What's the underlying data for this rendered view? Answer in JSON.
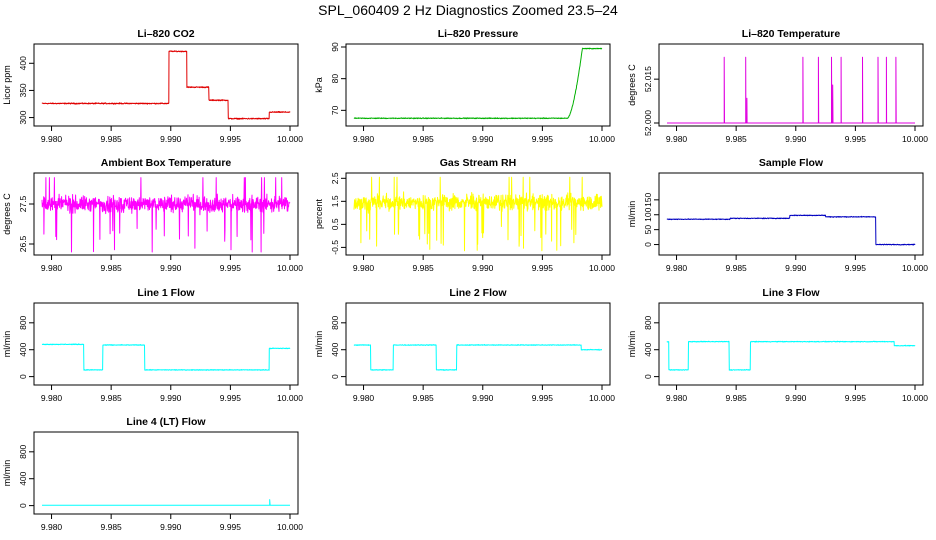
{
  "figure": {
    "title": "SPL_060409  2 Hz Diagnostics Zoomed 23.5–24"
  },
  "chart_data": [
    {
      "id": "co2",
      "type": "line",
      "title": "Li–820 CO2",
      "ylabel": "Licor ppm",
      "xlabel": "",
      "color": "#e00000",
      "xlim": [
        9.9792,
        10.0
      ],
      "ylim": [
        290,
        430
      ],
      "xticks": [
        9.98,
        9.985,
        9.99,
        9.995,
        10.0
      ],
      "xtick_labels": [
        "9.980",
        "9.985",
        "9.990",
        "9.995",
        "10.000"
      ],
      "yticks": [
        300,
        350,
        400
      ],
      "ytick_labels": [
        "300",
        "350",
        "400"
      ],
      "noise": 1.5,
      "segments": [
        [
          9.9792,
          9.98985,
          326
        ],
        [
          9.98985,
          9.99135,
          422
        ],
        [
          9.99135,
          9.9932,
          356
        ],
        [
          9.9932,
          9.9948,
          332
        ],
        [
          9.9948,
          9.99825,
          298
        ],
        [
          9.99825,
          10.0,
          310
        ]
      ]
    },
    {
      "id": "pressure",
      "type": "line",
      "title": "Li–820 Pressure",
      "ylabel": "kPa",
      "xlabel": "",
      "color": "#00b000",
      "xlim": [
        9.9792,
        10.0
      ],
      "ylim": [
        66,
        90
      ],
      "xticks": [
        9.98,
        9.985,
        9.99,
        9.995,
        10.0
      ],
      "xtick_labels": [
        "9.980",
        "9.985",
        "9.990",
        "9.995",
        "10.000"
      ],
      "yticks": [
        70,
        80,
        90
      ],
      "ytick_labels": [
        "70",
        "80",
        "90"
      ],
      "noise": 0.2,
      "segments": [
        [
          9.9792,
          9.9975,
          67.5
        ],
        [
          9.9975,
          9.99835,
          89.5
        ],
        [
          9.99835,
          10.0,
          89.5
        ]
      ],
      "ramp": [
        9.9971,
        9.99835,
        67.5,
        89.5
      ]
    },
    {
      "id": "temperature",
      "type": "line",
      "title": "Li–820 Temperature",
      "ylabel": "degrees C",
      "xlabel": "",
      "color": "#e000e0",
      "xlim": [
        9.9792,
        10.0
      ],
      "ylim": [
        52.0,
        52.026
      ],
      "xticks": [
        9.98,
        9.985,
        9.99,
        9.995,
        10.0
      ],
      "xtick_labels": [
        "9.980",
        "9.985",
        "9.990",
        "9.995",
        "10.000"
      ],
      "yticks": [
        52.0,
        52.015
      ],
      "ytick_labels": [
        "52.000",
        "52.015"
      ],
      "baseline": 52.0,
      "spikes": [
        [
          9.984,
          52.0225
        ],
        [
          9.9858,
          52.0225
        ],
        [
          9.9859,
          52.0085
        ],
        [
          9.9906,
          52.0225
        ],
        [
          9.9919,
          52.0225
        ],
        [
          9.993,
          52.0225
        ],
        [
          9.9931,
          52.013
        ],
        [
          9.9938,
          52.0225
        ],
        [
          9.9956,
          52.0225
        ],
        [
          9.9969,
          52.0225
        ],
        [
          9.9976,
          52.0225
        ],
        [
          9.9984,
          52.0225
        ]
      ]
    },
    {
      "id": "ambient-box-temperature",
      "type": "line",
      "title": "Ambient Box Temperature",
      "ylabel": "degrees C",
      "xlabel": "",
      "color": "#ff00ff",
      "xlim": [
        9.9792,
        10.0
      ],
      "ylim": [
        26.3,
        28.2
      ],
      "xticks": [
        9.98,
        9.985,
        9.99,
        9.995,
        10.0
      ],
      "xtick_labels": [
        "9.980",
        "9.985",
        "9.990",
        "9.995",
        "10.000"
      ],
      "yticks": [
        26.5,
        27.5
      ],
      "ytick_labels": [
        "26.5",
        "27.5"
      ],
      "center": 27.5,
      "noise": 0.3
    },
    {
      "id": "gas-stream-rh",
      "type": "line",
      "title": "Gas Stream RH",
      "ylabel": "percent",
      "xlabel": "",
      "color": "#ffff00",
      "xlim": [
        9.9792,
        10.0
      ],
      "ylim": [
        -0.7,
        2.6
      ],
      "xticks": [
        9.98,
        9.985,
        9.99,
        9.995,
        10.0
      ],
      "xtick_labels": [
        "9.980",
        "9.985",
        "9.990",
        "9.995",
        "10.000"
      ],
      "yticks": [
        -0.5,
        0.5,
        1.5,
        2.5
      ],
      "ytick_labels": [
        "-0.5",
        "0.5",
        "1.5",
        "2.5"
      ],
      "center": 1.45,
      "noise": 0.5
    },
    {
      "id": "sample-flow",
      "type": "line",
      "title": "Sample Flow",
      "ylabel": "ml/min",
      "xlabel": "",
      "color": "#0000c0",
      "xlim": [
        9.9792,
        10.0
      ],
      "ylim": [
        -25,
        230
      ],
      "xticks": [
        9.98,
        9.985,
        9.99,
        9.995,
        10.0
      ],
      "xtick_labels": [
        "9.980",
        "9.985",
        "9.990",
        "9.995",
        "10.000"
      ],
      "yticks": [
        0,
        50,
        100,
        150
      ],
      "ytick_labels": [
        "0",
        "50",
        "100",
        "150"
      ],
      "noise": 2,
      "segments": [
        [
          9.9792,
          9.9845,
          85
        ],
        [
          9.9845,
          9.9895,
          88
        ],
        [
          9.9895,
          9.9925,
          98
        ],
        [
          9.9925,
          9.9967,
          93
        ],
        [
          9.9967,
          10.0,
          0
        ]
      ]
    },
    {
      "id": "line-1-flow",
      "type": "line",
      "title": "Line 1 Flow",
      "ylabel": "ml/min",
      "xlabel": "",
      "color": "#00ffff",
      "xlim": [
        9.9792,
        10.0
      ],
      "ylim": [
        -80,
        1050
      ],
      "xticks": [
        9.98,
        9.985,
        9.99,
        9.995,
        10.0
      ],
      "xtick_labels": [
        "9.980",
        "9.985",
        "9.990",
        "9.995",
        "10.000"
      ],
      "yticks": [
        0,
        400,
        800
      ],
      "ytick_labels": [
        "0",
        "400",
        "800"
      ],
      "noise": 8,
      "segments": [
        [
          9.9792,
          9.9827,
          480
        ],
        [
          9.9827,
          9.9843,
          100
        ],
        [
          9.9843,
          9.9878,
          470
        ],
        [
          9.9878,
          9.99825,
          100
        ],
        [
          9.99825,
          10.0,
          420
        ]
      ]
    },
    {
      "id": "line-2-flow",
      "type": "line",
      "title": "Line 2 Flow",
      "ylabel": "ml/min",
      "xlabel": "",
      "color": "#00ffff",
      "xlim": [
        9.9792,
        10.0
      ],
      "ylim": [
        -80,
        1050
      ],
      "xticks": [
        9.98,
        9.985,
        9.99,
        9.995,
        10.0
      ],
      "xtick_labels": [
        "9.980",
        "9.985",
        "9.990",
        "9.995",
        "10.000"
      ],
      "yticks": [
        0,
        400,
        800
      ],
      "ytick_labels": [
        "0",
        "400",
        "800"
      ],
      "noise": 8,
      "segments": [
        [
          9.9792,
          9.9806,
          470
        ],
        [
          9.9806,
          9.9825,
          100
        ],
        [
          9.9825,
          9.9861,
          470
        ],
        [
          9.9861,
          9.9878,
          100
        ],
        [
          9.9878,
          9.99825,
          470
        ],
        [
          9.99825,
          10.0,
          400
        ]
      ]
    },
    {
      "id": "line-3-flow",
      "type": "line",
      "title": "Line 3 Flow",
      "ylabel": "ml/min",
      "xlabel": "",
      "color": "#00ffff",
      "xlim": [
        9.9792,
        10.0
      ],
      "ylim": [
        -80,
        1050
      ],
      "xticks": [
        9.98,
        9.985,
        9.99,
        9.995,
        10.0
      ],
      "xtick_labels": [
        "9.980",
        "9.985",
        "9.990",
        "9.995",
        "10.000"
      ],
      "yticks": [
        0,
        400,
        800
      ],
      "ytick_labels": [
        "0",
        "400",
        "800"
      ],
      "noise": 8,
      "segments": [
        [
          9.9792,
          9.97935,
          520
        ],
        [
          9.97935,
          9.981,
          100
        ],
        [
          9.981,
          9.9844,
          520
        ],
        [
          9.9844,
          9.9862,
          100
        ],
        [
          9.9862,
          9.99825,
          520
        ],
        [
          9.99825,
          10.0,
          460
        ]
      ]
    },
    {
      "id": "line-4-lt-flow",
      "type": "line",
      "title": "Line 4 (LT) Flow",
      "ylabel": "ml/min",
      "xlabel": "",
      "color": "#00ffff",
      "xlim": [
        9.9792,
        10.0
      ],
      "ylim": [
        -80,
        1050
      ],
      "xticks": [
        9.98,
        9.985,
        9.99,
        9.995,
        10.0
      ],
      "xtick_labels": [
        "9.980",
        "9.985",
        "9.990",
        "9.995",
        "10.000"
      ],
      "yticks": [
        0,
        400,
        800
      ],
      "ytick_labels": [
        "0",
        "400",
        "800"
      ],
      "noise": 0,
      "segments": [
        [
          9.9792,
          10.0,
          5
        ]
      ],
      "spikes": [
        [
          9.9983,
          90
        ]
      ]
    }
  ]
}
